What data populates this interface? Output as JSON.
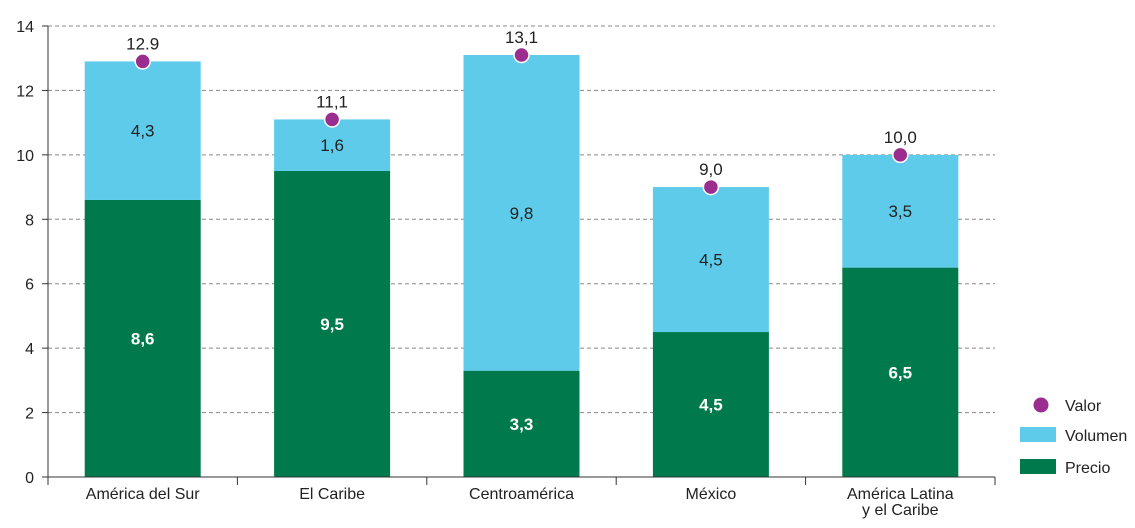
{
  "colors": {
    "precio": "#007A4D",
    "volumen": "#5ECBEB",
    "valor": "#9B2D8E",
    "grid": "#888888",
    "axis": "#333333",
    "text": "#222222",
    "bar_label_on_dark": "#ffffff"
  },
  "chart_data": {
    "type": "bar",
    "stacked": true,
    "categories": [
      "América del Sur",
      "El Caribe",
      "Centroamérica",
      "México",
      "América Latina\ny el Caribe"
    ],
    "series": [
      {
        "name": "Precio",
        "kind": "bar",
        "values": [
          8.6,
          9.5,
          3.3,
          4.5,
          6.5
        ],
        "labels": [
          "8,6",
          "9,5",
          "3,3",
          "4,5",
          "6,5"
        ]
      },
      {
        "name": "Volumen",
        "kind": "bar",
        "values": [
          4.3,
          1.6,
          9.8,
          4.5,
          3.5
        ],
        "labels": [
          "4,3",
          "1,6",
          "9,8",
          "4,5",
          "3,5"
        ]
      },
      {
        "name": "Valor",
        "kind": "marker",
        "values": [
          12.9,
          11.1,
          13.1,
          9.0,
          10.0
        ],
        "labels": [
          "12.9",
          "11,1",
          "13,1",
          "9,0",
          "10,0"
        ]
      }
    ],
    "yaxis": {
      "min": 0,
      "max": 14,
      "ticks": [
        "0",
        "2",
        "4",
        "6",
        "8",
        "10",
        "12",
        "14"
      ]
    },
    "grid": true,
    "legend": {
      "position": "bottom-right",
      "items": [
        "Valor",
        "Volumen",
        "Precio"
      ]
    }
  }
}
